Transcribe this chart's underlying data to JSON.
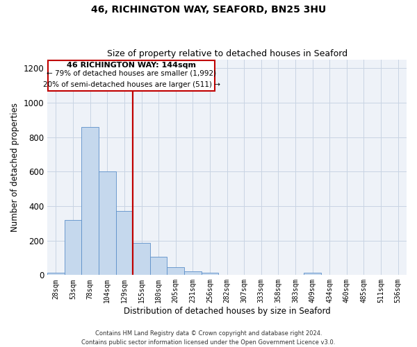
{
  "title": "46, RICHINGTON WAY, SEAFORD, BN25 3HU",
  "subtitle": "Size of property relative to detached houses in Seaford",
  "xlabel": "Distribution of detached houses by size in Seaford",
  "ylabel": "Number of detached properties",
  "bin_labels": [
    "28sqm",
    "53sqm",
    "78sqm",
    "104sqm",
    "129sqm",
    "155sqm",
    "180sqm",
    "205sqm",
    "231sqm",
    "256sqm",
    "282sqm",
    "307sqm",
    "333sqm",
    "358sqm",
    "383sqm",
    "409sqm",
    "434sqm",
    "460sqm",
    "485sqm",
    "511sqm",
    "536sqm"
  ],
  "bar_values": [
    15,
    320,
    860,
    600,
    370,
    185,
    105,
    47,
    20,
    15,
    0,
    0,
    0,
    0,
    0,
    12,
    0,
    0,
    0,
    0,
    0
  ],
  "bar_color": "#c5d8ed",
  "bar_edge_color": "#5b8fc9",
  "grid_color": "#c8d4e3",
  "background_color": "#eef2f8",
  "marker_line_color": "#c00000",
  "annotation_box_color": "#c00000",
  "annotation_text_line1": "46 RICHINGTON WAY: 144sqm",
  "annotation_text_line2": "← 79% of detached houses are smaller (1,992)",
  "annotation_text_line3": "20% of semi-detached houses are larger (511) →",
  "footer_line1": "Contains HM Land Registry data © Crown copyright and database right 2024.",
  "footer_line2": "Contains public sector information licensed under the Open Government Licence v3.0.",
  "ylim": [
    0,
    1250
  ],
  "yticks": [
    0,
    200,
    400,
    600,
    800,
    1000,
    1200
  ]
}
